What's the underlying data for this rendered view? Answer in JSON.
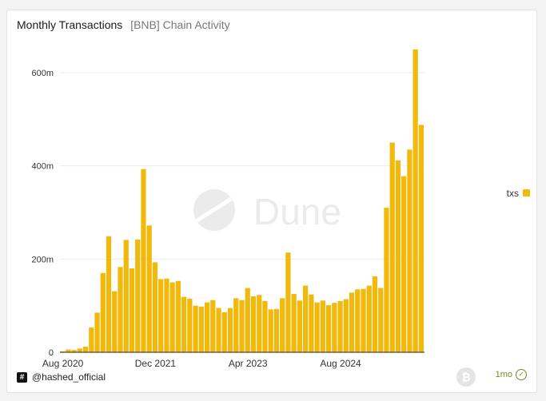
{
  "header": {
    "title": "Monthly Transactions",
    "subtitle": "[BNB] Chain Activity"
  },
  "watermark": {
    "text": "Dune"
  },
  "footer": {
    "author": "@hashed_official",
    "badge_text": "1mo"
  },
  "colors": {
    "bar": "#f0b90b",
    "grid": "#ececec",
    "axis": "#333333"
  },
  "chart_data": {
    "type": "bar",
    "title": "Monthly Transactions",
    "subtitle": "[BNB] Chain Activity",
    "xlabel": "",
    "ylabel": "",
    "ylim": [
      0,
      650
    ],
    "yticks": [
      0,
      200,
      400,
      600
    ],
    "ytick_labels": [
      "0",
      "200m",
      "400m",
      "600m"
    ],
    "xtick_labels": [
      {
        "label": "Aug 2020",
        "index": 0
      },
      {
        "label": "Dec 2021",
        "index": 16
      },
      {
        "label": "Apr 2023",
        "index": 32
      },
      {
        "label": "Aug 2024",
        "index": 48
      }
    ],
    "legend": {
      "position": "right",
      "entries": [
        "txs"
      ]
    },
    "grid": true,
    "series": [
      {
        "name": "txs",
        "unit": "m",
        "categories": [
          "2020-08",
          "2020-09",
          "2020-10",
          "2020-11",
          "2020-12",
          "2021-01",
          "2021-02",
          "2021-03",
          "2021-04",
          "2021-05",
          "2021-06",
          "2021-07",
          "2021-08",
          "2021-09",
          "2021-10",
          "2021-11",
          "2021-12",
          "2022-01",
          "2022-02",
          "2022-03",
          "2022-04",
          "2022-05",
          "2022-06",
          "2022-07",
          "2022-08",
          "2022-09",
          "2022-10",
          "2022-11",
          "2022-12",
          "2023-01",
          "2023-02",
          "2023-03",
          "2023-04",
          "2023-05",
          "2023-06",
          "2023-07",
          "2023-08",
          "2023-09",
          "2023-10",
          "2023-11",
          "2023-12",
          "2024-01",
          "2024-02",
          "2024-03",
          "2024-04",
          "2024-05",
          "2024-06",
          "2024-07",
          "2024-08",
          "2024-09",
          "2024-10",
          "2024-11",
          "2024-12",
          "2025-01",
          "2025-02",
          "2025-03",
          "2025-04",
          "2025-05",
          "2025-06",
          "2025-07",
          "2025-08",
          "2025-09",
          "2025-10"
        ],
        "values": [
          2,
          6,
          5,
          8,
          12,
          53,
          85,
          170,
          249,
          131,
          183,
          241,
          180,
          242,
          393,
          272,
          193,
          157,
          158,
          150,
          153,
          119,
          115,
          100,
          98,
          107,
          112,
          95,
          86,
          95,
          116,
          112,
          138,
          120,
          123,
          110,
          92,
          93,
          116,
          214,
          125,
          111,
          143,
          124,
          107,
          111,
          101,
          106,
          110,
          114,
          128,
          135,
          136,
          143,
          163,
          138,
          310,
          450,
          412,
          378,
          435,
          650,
          488
        ]
      }
    ]
  }
}
